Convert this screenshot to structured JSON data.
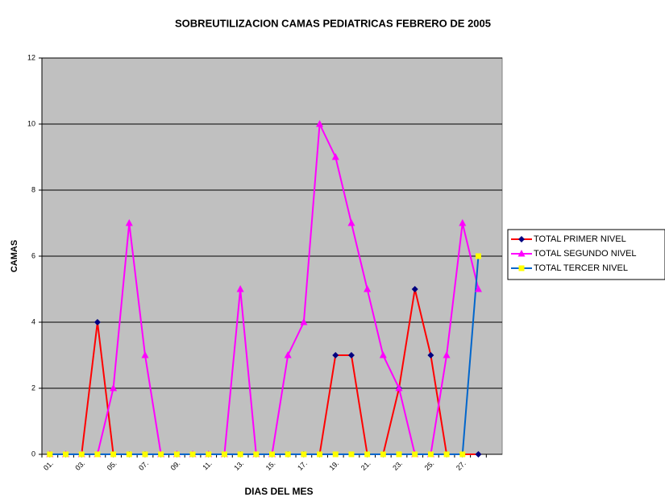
{
  "chart_data": {
    "type": "line",
    "title": "SOBREUTILIZACION CAMAS PEDIATRICAS FEBRERO DE 2005",
    "x_label": "DIAS DEL MES",
    "y_label": "CAMAS",
    "categories": [
      "01.",
      null,
      "03.",
      null,
      "05.",
      null,
      "07.",
      null,
      "09.",
      null,
      "11.",
      null,
      "13.",
      null,
      "15.",
      null,
      "17.",
      null,
      "19.",
      null,
      "21.",
      null,
      "23.",
      null,
      "25.",
      null,
      "27.",
      null,
      null
    ],
    "series": [
      {
        "name": "TOTAL PRIMER NIVEL",
        "color": "#ff0000",
        "marker": "diamond",
        "marker_color": "#000080",
        "values": [
          0,
          0,
          0,
          4,
          0,
          0,
          0,
          0,
          0,
          0,
          0,
          0,
          0,
          0,
          0,
          0,
          0,
          0,
          3,
          3,
          0,
          0,
          2,
          5,
          3,
          0,
          0,
          0,
          null
        ]
      },
      {
        "name": "TOTAL SEGUNDO NIVEL",
        "color": "#ff00ff",
        "marker": "triangle",
        "marker_color": "#ff00ff",
        "values": [
          0,
          0,
          0,
          0,
          2,
          7,
          3,
          0,
          0,
          0,
          0,
          0,
          5,
          0,
          0,
          3,
          4,
          10,
          9,
          7,
          5,
          3,
          2,
          0,
          0,
          3,
          7,
          5,
          null
        ]
      },
      {
        "name": "TOTAL TERCER NIVEL",
        "color": "#0066cc",
        "marker": "square",
        "marker_color": "#ffff00",
        "values": [
          0,
          0,
          0,
          0,
          0,
          0,
          0,
          0,
          0,
          0,
          0,
          0,
          0,
          0,
          0,
          0,
          0,
          0,
          0,
          0,
          0,
          0,
          0,
          0,
          0,
          0,
          0,
          6,
          null
        ]
      }
    ],
    "ylim": [
      0,
      12
    ],
    "yticks": [
      0,
      2,
      4,
      6,
      8,
      10,
      12
    ],
    "grid": true,
    "legend": "right"
  }
}
